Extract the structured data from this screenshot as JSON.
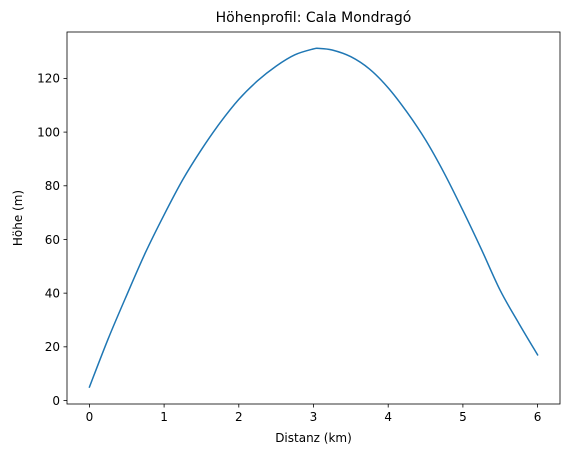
{
  "chart_data": {
    "type": "line",
    "title": "Höhenprofil: Cala Mondragó",
    "xlabel": "Distanz (km)",
    "ylabel": "Höhe (m)",
    "xlim": [
      -0.3,
      6.3
    ],
    "ylim": [
      -1.3,
      137.3
    ],
    "x_ticks": [
      0,
      1,
      2,
      3,
      4,
      5,
      6
    ],
    "y_ticks": [
      0,
      20,
      40,
      60,
      80,
      100,
      120
    ],
    "grid": false,
    "legend": "none",
    "series": [
      {
        "color": "#1f77b4",
        "x": [
          0,
          0.25,
          0.5,
          0.75,
          1.0,
          1.25,
          1.5,
          1.75,
          2.0,
          2.25,
          2.5,
          2.75,
          3.0,
          3.07,
          3.25,
          3.5,
          3.75,
          4.0,
          4.25,
          4.5,
          4.75,
          5.0,
          5.25,
          5.5,
          5.75,
          6.0
        ],
        "y": [
          5,
          22.9,
          39.3,
          55.1,
          69.2,
          82.3,
          93.5,
          103.5,
          112.2,
          119.1,
          124.6,
          128.8,
          131.0,
          131.2,
          130.6,
          128.1,
          123.5,
          116.5,
          107.5,
          97.1,
          84.7,
          70.8,
          56.2,
          41.0,
          28.7,
          17
        ]
      }
    ]
  }
}
